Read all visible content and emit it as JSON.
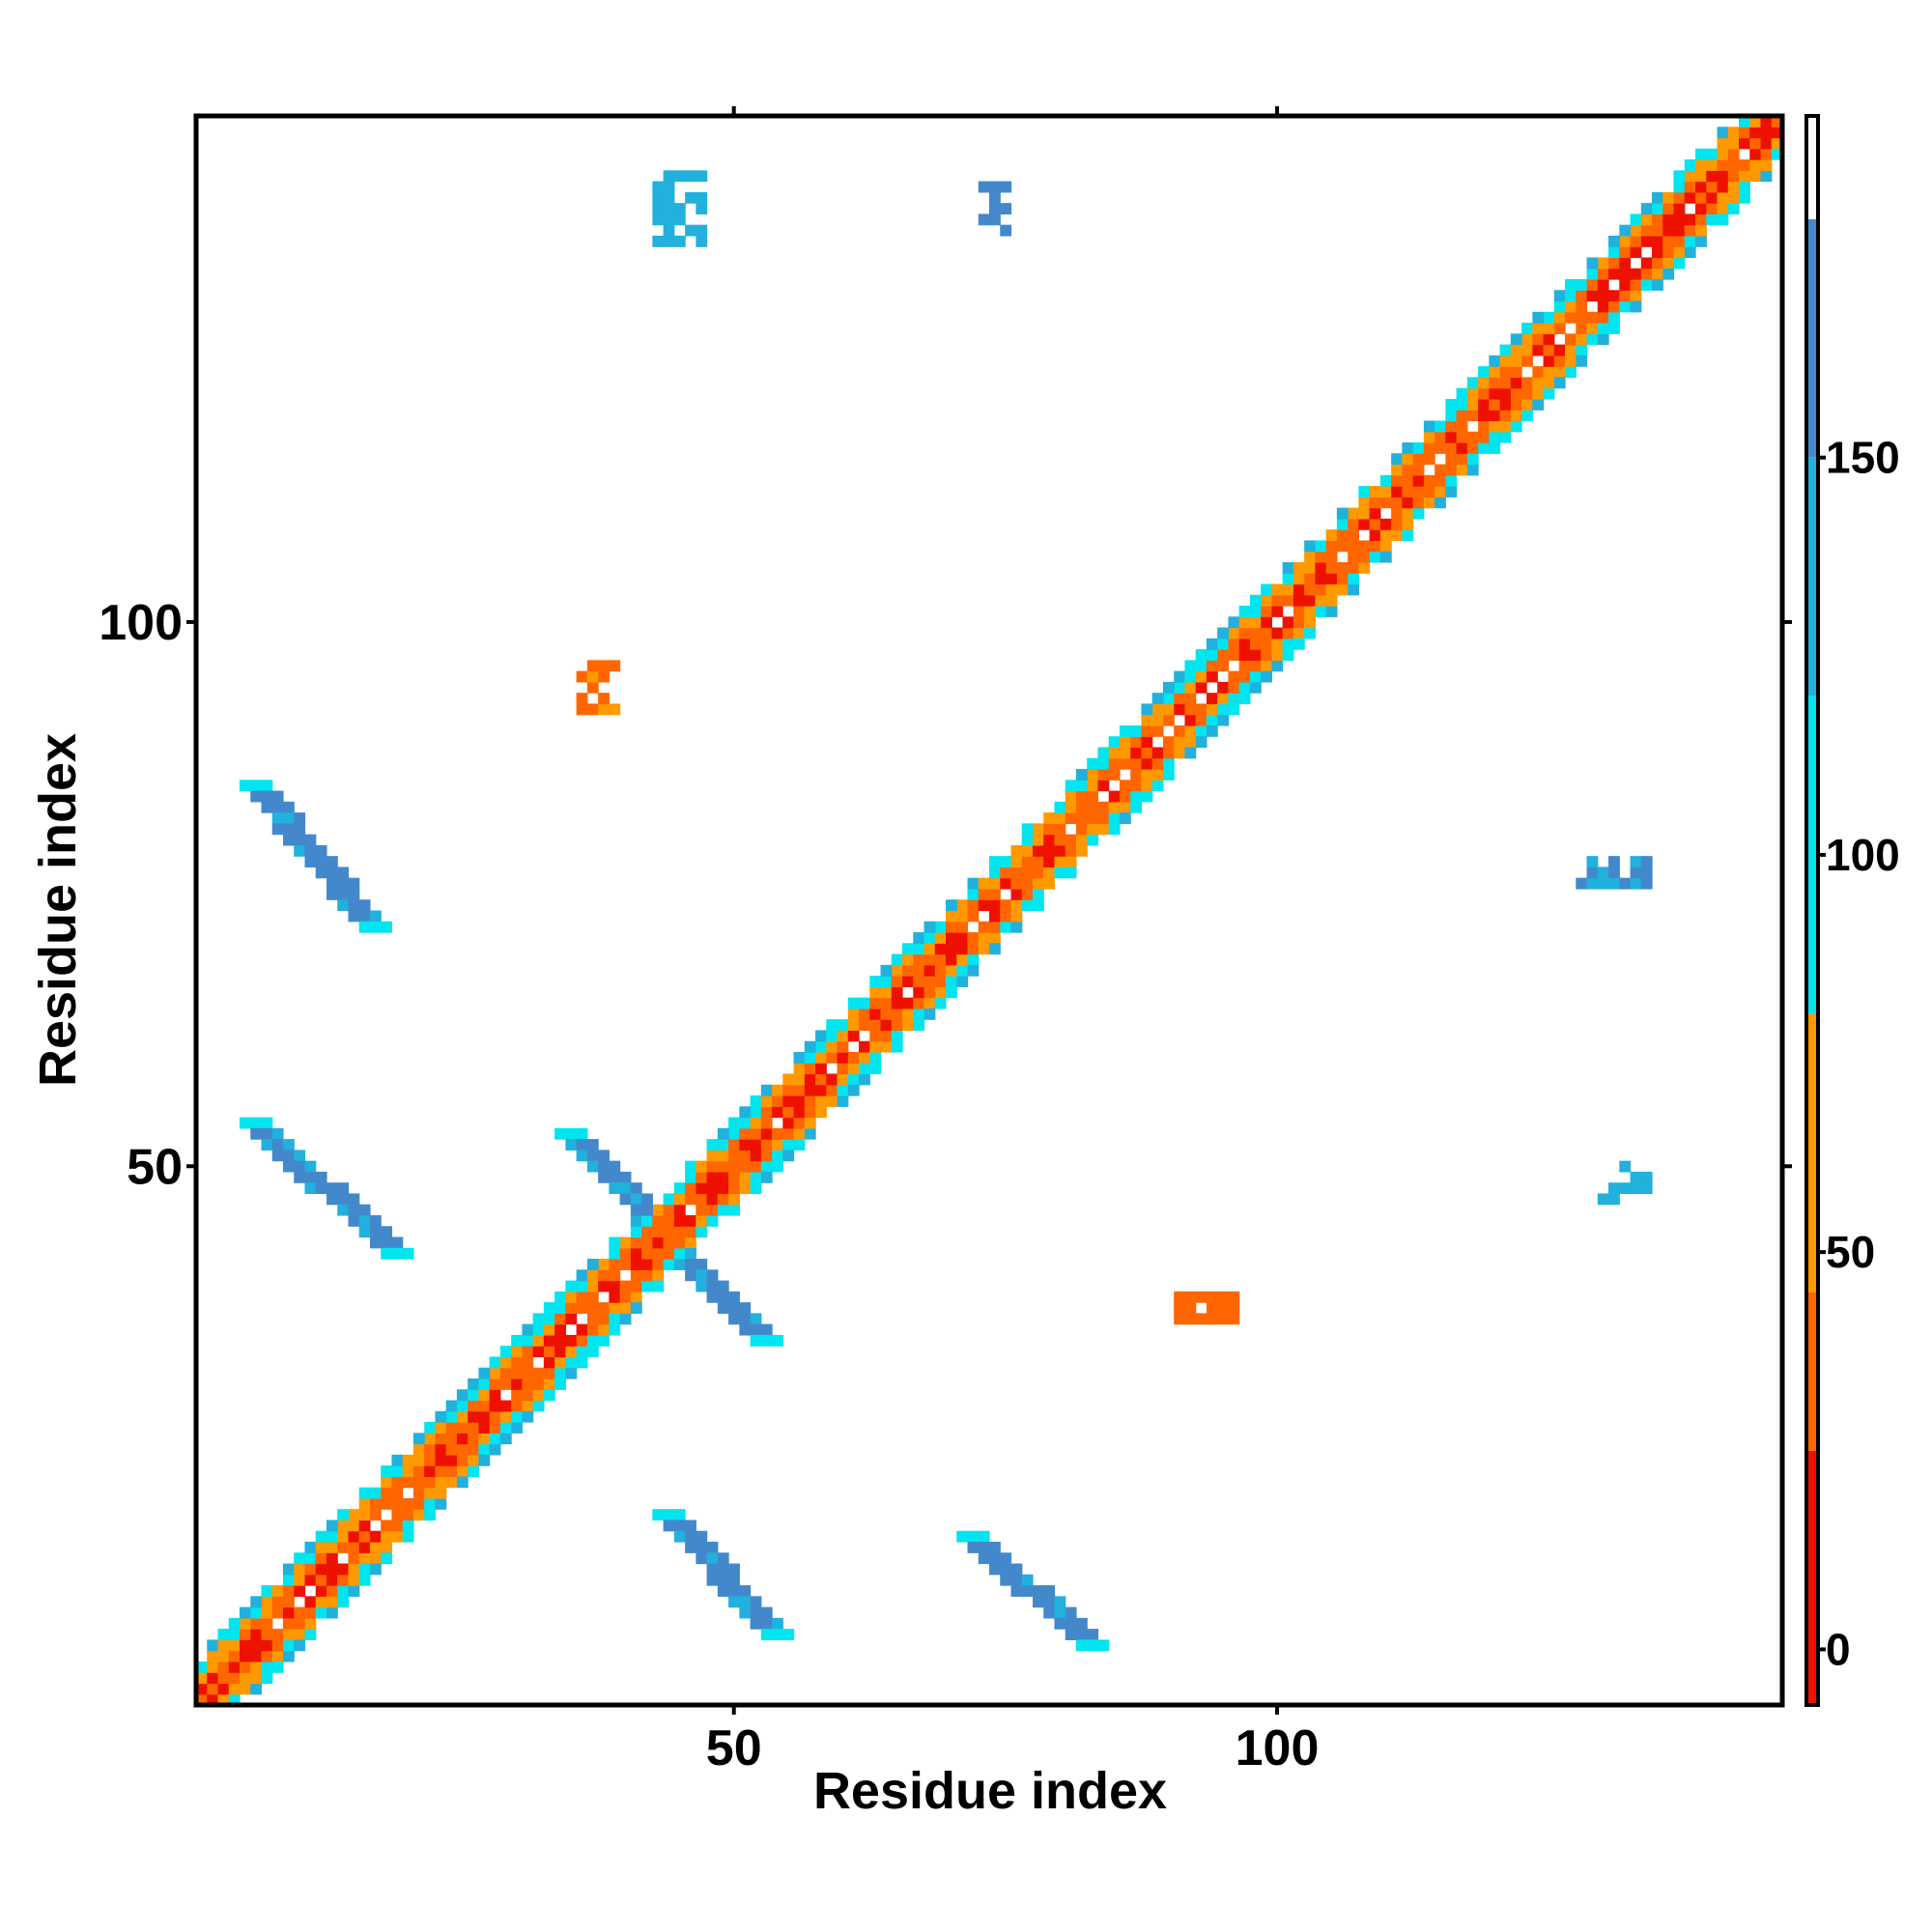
{
  "chart_data": {
    "type": "heatmap",
    "xlabel": "Residue index",
    "ylabel": "Residue index",
    "xlim": [
      1,
      146
    ],
    "ylim": [
      1,
      146
    ],
    "x_ticks": [
      50,
      100
    ],
    "y_ticks": [
      50,
      100
    ],
    "x_tick_labels": [
      "50",
      "100"
    ],
    "y_tick_labels": [
      "50",
      "100"
    ],
    "colorbar": {
      "range": [
        -7,
        193
      ],
      "ticks": [
        0,
        50,
        100,
        150
      ],
      "tick_labels": [
        "0",
        "50",
        "100",
        "150"
      ],
      "bins": [
        {
          "from": -7,
          "to": 25,
          "color": "#ee1100"
        },
        {
          "from": 25,
          "to": 45,
          "color": "#ff6600"
        },
        {
          "from": 45,
          "to": 80,
          "color": "#ff9900"
        },
        {
          "from": 80,
          "to": 120,
          "color": "#00e5ee"
        },
        {
          "from": 120,
          "to": 150,
          "color": "#22b0dd"
        },
        {
          "from": 150,
          "to": 180,
          "color": "#4488cc"
        },
        {
          "from": 180,
          "to": 193,
          "color": "#ffffff"
        }
      ]
    },
    "grid": false,
    "legend": "right",
    "features": [
      {
        "kind": "diagonal",
        "x": [
          1,
          146
        ],
        "y": [
          1,
          146
        ],
        "value": 30
      },
      {
        "kind": "band",
        "x": [
          43,
          53
        ],
        "y": [
          18,
          7
        ],
        "value": 160
      },
      {
        "kind": "band",
        "x": [
          71,
          82
        ],
        "y": [
          16,
          6
        ],
        "value": 165
      },
      {
        "kind": "band",
        "x": [
          5,
          16
        ],
        "y": [
          85,
          72
        ],
        "value": 165
      },
      {
        "kind": "band",
        "x": [
          5,
          18
        ],
        "y": [
          54,
          42
        ],
        "value": 160
      },
      {
        "kind": "band",
        "x": [
          34,
          52
        ],
        "y": [
          53,
          34
        ],
        "value": 160
      },
      {
        "kind": "patch",
        "x": [
          36,
          39
        ],
        "y": [
          96,
          92
        ],
        "value": 40
      },
      {
        "kind": "patch",
        "x": [
          91,
          96
        ],
        "y": [
          38,
          36
        ],
        "value": 35
      },
      {
        "kind": "patch",
        "x": [
          43,
          47
        ],
        "y": [
          141,
          135
        ],
        "value": 140
      },
      {
        "kind": "patch",
        "x": [
          73,
          75
        ],
        "y": [
          140,
          136
        ],
        "value": 160
      },
      {
        "kind": "patch",
        "x": [
          128,
          134
        ],
        "y": [
          78,
          76
        ],
        "value": 150
      },
      {
        "kind": "patch",
        "x": [
          130,
          134
        ],
        "y": [
          50,
          47
        ],
        "value": 140
      }
    ]
  }
}
